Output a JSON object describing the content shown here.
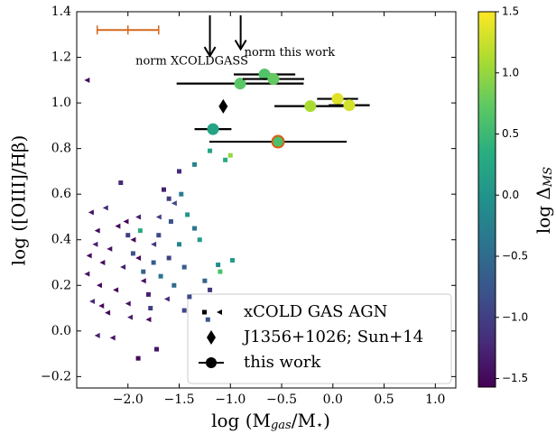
{
  "chart_data": {
    "type": "scatter",
    "xlabel": [
      "log (M",
      "gas",
      "/M",
      "⋆",
      ")"
    ],
    "ylabel": "log ([OIII]/Hβ)",
    "colorbar_label": [
      "log Δ",
      "MS"
    ],
    "colormap": "viridis",
    "xlim": [
      -2.5,
      1.2
    ],
    "ylim": [
      -0.25,
      1.4
    ],
    "clim": [
      -1.57,
      1.5
    ],
    "xticks": [
      {
        "value": -2,
        "label": "−2.0"
      },
      {
        "value": -1.5,
        "label": "−1.5"
      },
      {
        "value": -1,
        "label": "−1.0"
      },
      {
        "value": -0.5,
        "label": "−0.5"
      },
      {
        "value": 0,
        "label": "0.0"
      },
      0.5,
      {
        "value": 1,
        "label": "1.0"
      }
    ],
    "yticks": [
      {
        "value": -0.2,
        "label": "−0.2"
      },
      {
        "value": 0,
        "label": "0.0"
      },
      0.2,
      0.4,
      0.6,
      0.8,
      {
        "value": 1,
        "label": "1.0"
      },
      1.2,
      1.4
    ],
    "cticks": [
      {
        "value": -1.5,
        "label": "−1.5"
      },
      {
        "value": -1,
        "label": "−1.0"
      },
      {
        "value": -0.5,
        "label": "−0.5"
      },
      {
        "value": 0,
        "label": "0.0"
      },
      0.5,
      {
        "value": 1,
        "label": "1.0"
      },
      1.5
    ],
    "series": [
      {
        "name": "xCOLD GAS AGN",
        "marker": "triangle",
        "x": [
          -2.36,
          -2.3,
          -2.32,
          -2.25,
          -2.4,
          -2.28,
          -2.35,
          -2.2,
          -2.3,
          -2.18,
          -2.1,
          -2.05,
          -2.12,
          -2.0,
          -1.95,
          -1.9,
          -1.85,
          -1.8,
          -2.22,
          -1.9,
          -2.38,
          -2.15,
          -1.75,
          -1.7,
          -2.02,
          -2.4,
          -2.26,
          -1.98,
          -1.62,
          -1.55
        ],
        "y": [
          0.52,
          0.44,
          0.38,
          0.3,
          0.25,
          0.2,
          0.13,
          0.08,
          -0.02,
          0.36,
          0.46,
          0.28,
          0.18,
          0.12,
          0.4,
          0.5,
          0.22,
          0.05,
          0.54,
          0.32,
          0.33,
          -0.03,
          0.38,
          0.5,
          0.48,
          1.1,
          0.11,
          0.06,
          0.14,
          0.56
        ],
        "c": [
          -1.4,
          -1.5,
          -1.3,
          -1.5,
          -1.4,
          -1.5,
          -1.2,
          -1.5,
          -1.3,
          -1.4,
          -1.5,
          -1.3,
          -1.5,
          -1.4,
          -1.5,
          -1.3,
          -1.4,
          -1.5,
          -1.2,
          -1.5,
          -1.5,
          -1.4,
          -1.1,
          -1.0,
          -1.5,
          -1.5,
          -1.5,
          -1.3,
          -1.2,
          -0.9
        ]
      },
      {
        "name": "xCOLD GAS AGN",
        "marker": "square",
        "x": [
          -2.07,
          -2.0,
          -1.95,
          -1.88,
          -1.85,
          -1.8,
          -1.75,
          -1.7,
          -1.68,
          -1.6,
          -1.58,
          -1.55,
          -1.5,
          -1.48,
          -1.45,
          -1.42,
          -1.4,
          -1.35,
          -1.3,
          -1.35,
          -1.25,
          -1.22,
          -1.2,
          -1.12,
          -1.1,
          -1.05,
          -1.0,
          -0.98,
          -1.2,
          -1.65,
          -1.78,
          -1.9,
          -1.72,
          -1.45,
          -1.6,
          -1.5
        ],
        "y": [
          0.65,
          0.42,
          0.34,
          0.44,
          0.26,
          0.16,
          0.3,
          0.42,
          0.24,
          0.32,
          0.48,
          0.2,
          0.38,
          0.6,
          0.28,
          0.51,
          0.15,
          0.45,
          0.4,
          0.73,
          0.22,
          0.05,
          0.18,
          0.29,
          0.26,
          0.75,
          0.77,
          0.31,
          0.79,
          0.62,
          0.1,
          -0.12,
          -0.08,
          0.09,
          0.58,
          0.7
        ],
        "c": [
          -1.2,
          -1.0,
          -0.8,
          0.3,
          -0.6,
          -1.3,
          -0.7,
          -0.9,
          -0.4,
          -1.0,
          -0.8,
          -0.5,
          -0.2,
          -0.3,
          -0.7,
          0.0,
          -0.9,
          -0.4,
          0.1,
          -0.2,
          -0.6,
          -0.8,
          -1.1,
          -0.1,
          0.6,
          0.3,
          1.0,
          0.1,
          0.2,
          -1.3,
          -1.0,
          -1.5,
          -1.4,
          -0.9,
          -1.0,
          -1.2
        ]
      },
      {
        "name": "J1356+1026; Sun+14",
        "marker": "diamond",
        "color": "#000000",
        "x": [
          -1.07
        ],
        "y": [
          0.985
        ]
      },
      {
        "name": "this work",
        "marker": "circle",
        "edge": "#e05a10",
        "x": [
          -0.535,
          -1.17,
          -0.905,
          -0.667,
          -0.58,
          -0.22,
          0.046,
          0.16
        ],
        "y": [
          0.83,
          0.885,
          1.085,
          1.125,
          1.105,
          0.986,
          1.018,
          0.99
        ],
        "xerr": [
          0.67,
          0.18,
          0.62,
          0.3,
          0.3,
          0.35,
          0.2,
          0.2
        ],
        "c": [
          0.6,
          0.2,
          0.7,
          0.65,
          0.75,
          1.1,
          1.35,
          1.3
        ]
      }
    ],
    "annotations": [
      {
        "text": "norm this work",
        "x": -0.9,
        "y": 1.22
      },
      {
        "text": "norm XCOLDGASS",
        "x": -1.2,
        "y": 1.19
      }
    ],
    "typical_error": {
      "x": -2.0,
      "y": 1.32,
      "xerr": 0.3,
      "color": "#d2691e"
    }
  }
}
